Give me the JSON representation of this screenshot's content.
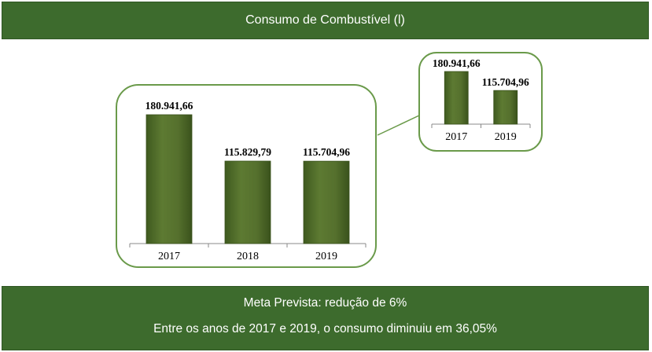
{
  "header": {
    "title": "Consumo de Combustível (l)"
  },
  "footer": {
    "goal": "Meta Prevista: redução de 6%",
    "summary": "Entre os anos de 2017 e 2019, o consumo diminuiu em 36,05%"
  },
  "colors": {
    "banner": "#3d6b2d",
    "bar": "#55702d",
    "frame": "#6a9a4a"
  },
  "chart_data": [
    {
      "type": "bar",
      "categories": [
        "2017",
        "2018",
        "2019"
      ],
      "values": [
        180941.66,
        115829.79,
        115704.96
      ],
      "data_labels": [
        "180.941,66",
        "115.829,79",
        "115.704,96"
      ],
      "ylim": [
        0,
        180941.66
      ],
      "grid": false
    },
    {
      "type": "bar",
      "categories": [
        "2017",
        "2019"
      ],
      "values": [
        180941.66,
        115704.96
      ],
      "data_labels": [
        "180.941,66",
        "115.704,96"
      ],
      "ylim": [
        0,
        180941.66
      ],
      "grid": false
    }
  ]
}
